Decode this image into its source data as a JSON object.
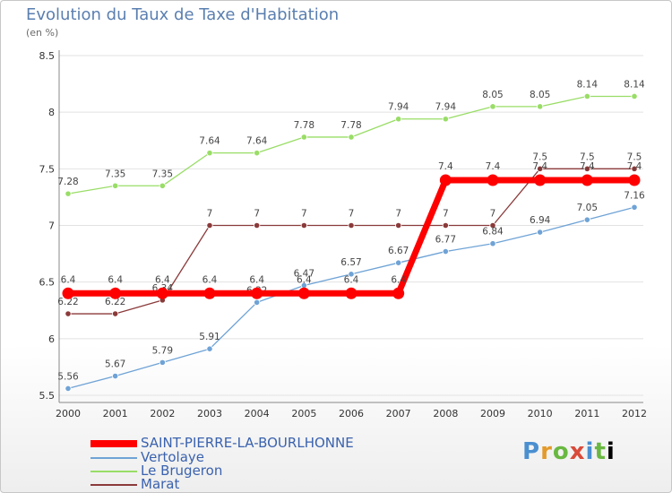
{
  "header": {
    "title": "Evolution du Taux de Taxe d'Habitation",
    "subtitle": "(en %)"
  },
  "logo": [
    "P",
    "r",
    "o",
    "x",
    "i",
    "t",
    "i"
  ],
  "chart_data": {
    "type": "line",
    "title": "Evolution du Taux de Taxe d'Habitation",
    "ylabel": "(en %)",
    "ylim": [
      5.5,
      8.5
    ],
    "yticks": [
      "5.5",
      "6",
      "6.5",
      "7",
      "7.5",
      "8",
      "8.5"
    ],
    "categories": [
      "2000",
      "2001",
      "2002",
      "2003",
      "2004",
      "2005",
      "2006",
      "2007",
      "2008",
      "2009",
      "2010",
      "2011",
      "2012"
    ],
    "series": [
      {
        "name": "SAINT-PIERRE-LA-BOURLHONNE",
        "color": "#ff0000",
        "values": [
          6.4,
          6.4,
          6.4,
          6.4,
          6.4,
          6.4,
          6.4,
          6.4,
          7.4,
          7.4,
          7.4,
          7.4,
          7.4
        ],
        "labels": [
          "6.4",
          "6.4",
          "6.4",
          "6.4",
          "6.4",
          "6.4",
          "6.4",
          "6.4",
          "7.4",
          "7.4",
          "7.4",
          "7.4",
          "7.4"
        ]
      },
      {
        "name": "Vertolaye",
        "color": "#6fa3d6",
        "values": [
          5.56,
          5.67,
          5.79,
          5.91,
          6.32,
          6.47,
          6.57,
          6.67,
          6.77,
          6.84,
          6.94,
          7.05,
          7.16
        ],
        "labels": [
          "5.56",
          "5.67",
          "5.79",
          "5.91",
          "6.32",
          "6.47",
          "6.57",
          "6.67",
          "6.77",
          "6.84",
          "6.94",
          "7.05",
          "7.16"
        ]
      },
      {
        "name": "Le Brugeron",
        "color": "#99dd66",
        "values": [
          7.28,
          7.35,
          7.35,
          7.64,
          7.64,
          7.78,
          7.78,
          7.94,
          7.94,
          8.05,
          8.05,
          8.14,
          8.14
        ],
        "labels": [
          "7.28",
          "7.35",
          "7.35",
          "7.64",
          "7.64",
          "7.78",
          "7.78",
          "7.94",
          "7.94",
          "8.05",
          "8.05",
          "8.14",
          "8.14"
        ]
      },
      {
        "name": "Marat",
        "color": "#8b3a3a",
        "values": [
          6.22,
          6.22,
          6.34,
          7,
          7,
          7,
          7,
          7,
          7,
          7,
          7.5,
          7.5,
          7.5
        ],
        "labels": [
          "6.22",
          "6.22",
          "6.34",
          "7",
          "7",
          "7",
          "7",
          "7",
          "7",
          "7",
          "7.5",
          "7.5",
          "7.5"
        ]
      }
    ]
  }
}
